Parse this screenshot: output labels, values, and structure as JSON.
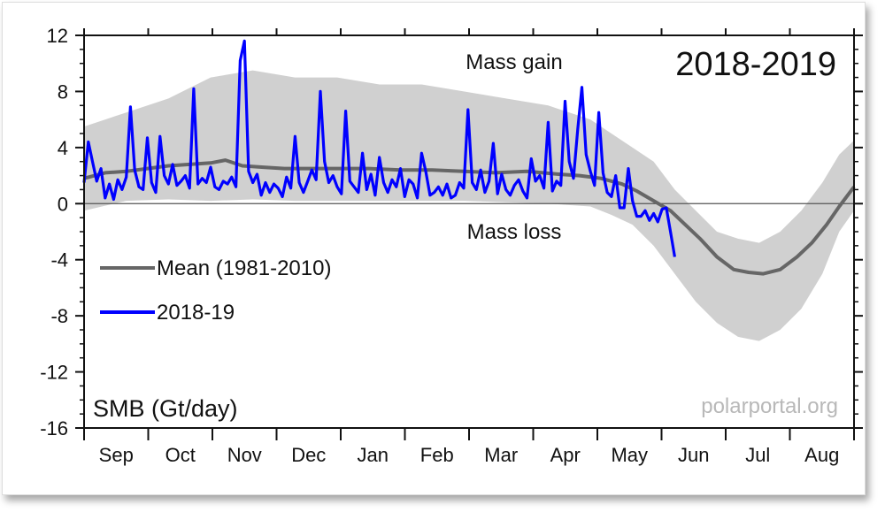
{
  "chart_data": {
    "type": "line",
    "title": "2018-2019",
    "ylabel": "SMB (Gt/day)",
    "source": "polarportal.org",
    "ylim": [
      -16,
      12
    ],
    "yticks": [
      12,
      8,
      4,
      0,
      -4,
      -8,
      -12,
      -16
    ],
    "ytick_labels": [
      "12",
      "8",
      "4",
      "0",
      "-4",
      "-8",
      "-12",
      "-16"
    ],
    "x_months": [
      "Sep",
      "Oct",
      "Nov",
      "Dec",
      "Jan",
      "Feb",
      "Mar",
      "Apr",
      "May",
      "Jun",
      "Jul",
      "Aug"
    ],
    "x_unit": "days since 1 Sep (0-365)",
    "annotations": {
      "gain": "Mass gain",
      "loss": "Mass loss"
    },
    "legend": {
      "placement": "left-middle",
      "entries": [
        "Mean (1981-2010)",
        "2018-19"
      ]
    },
    "colors": {
      "mean": "#666666",
      "current": "#0000ff",
      "band": "#d0d0d0",
      "zero_line": "#555555"
    },
    "series": [
      {
        "name": "Mean (1981-2010)",
        "x": [
          0,
          10,
          20,
          30,
          40,
          50,
          60,
          67,
          75,
          85,
          95,
          105,
          120,
          135,
          150,
          165,
          180,
          195,
          210,
          225,
          235,
          245,
          255,
          262,
          270,
          278,
          285,
          292,
          300,
          308,
          315,
          322,
          330,
          338,
          345,
          352,
          358,
          365
        ],
        "values": [
          1.8,
          2.2,
          2.3,
          2.5,
          2.7,
          2.8,
          2.9,
          3.1,
          2.7,
          2.6,
          2.5,
          2.5,
          2.5,
          2.5,
          2.4,
          2.4,
          2.3,
          2.2,
          2.3,
          2.1,
          2.0,
          1.8,
          1.4,
          0.9,
          0.2,
          -0.5,
          -1.5,
          -2.5,
          -3.8,
          -4.7,
          -4.9,
          -5.0,
          -4.7,
          -3.8,
          -2.8,
          -1.5,
          -0.2,
          1.2
        ]
      },
      {
        "name": "2018-19",
        "x": [
          0,
          2,
          4,
          6,
          8,
          10,
          12,
          14,
          16,
          18,
          20,
          22,
          24,
          26,
          28,
          30,
          32,
          34,
          36,
          38,
          40,
          42,
          44,
          46,
          48,
          50,
          52,
          54,
          56,
          58,
          60,
          62,
          64,
          66,
          68,
          70,
          72,
          74,
          76,
          78,
          80,
          82,
          84,
          86,
          88,
          90,
          92,
          94,
          96,
          98,
          100,
          102,
          104,
          106,
          108,
          110,
          112,
          114,
          116,
          118,
          120,
          122,
          124,
          126,
          128,
          130,
          132,
          134,
          136,
          138,
          140,
          142,
          144,
          146,
          148,
          150,
          152,
          154,
          156,
          158,
          160,
          162,
          164,
          166,
          168,
          170,
          172,
          174,
          176,
          178,
          180,
          182,
          184,
          186,
          188,
          190,
          192,
          194,
          196,
          198,
          200,
          202,
          204,
          206,
          208,
          210,
          212,
          214,
          216,
          218,
          220,
          222,
          224,
          226,
          228,
          230,
          232,
          234,
          236,
          238,
          240,
          242,
          244,
          246,
          248,
          250,
          252,
          254,
          256,
          258,
          260,
          262,
          264,
          266,
          268,
          270,
          272,
          274,
          276,
          278,
          280
        ],
        "values": [
          1.5,
          4.4,
          3.0,
          1.6,
          2.5,
          0.4,
          1.4,
          0.3,
          1.7,
          1.0,
          1.9,
          6.9,
          2.4,
          1.2,
          1.0,
          4.7,
          1.5,
          0.8,
          4.8,
          2.0,
          1.4,
          2.8,
          1.3,
          1.6,
          2.0,
          1.1,
          8.2,
          1.4,
          1.8,
          1.5,
          2.6,
          1.2,
          1.0,
          1.6,
          1.4,
          1.9,
          1.2,
          10.2,
          11.6,
          2.3,
          1.5,
          2.1,
          0.6,
          1.5,
          0.8,
          1.4,
          1.1,
          0.5,
          1.9,
          1.1,
          4.8,
          1.5,
          0.8,
          1.6,
          2.4,
          1.7,
          8.0,
          3.0,
          1.5,
          2.0,
          1.2,
          0.7,
          6.6,
          1.6,
          1.2,
          0.8,
          3.6,
          1.0,
          2.1,
          0.6,
          3.3,
          1.5,
          0.8,
          1.7,
          1.2,
          2.5,
          0.5,
          1.7,
          1.4,
          0.4,
          3.6,
          2.3,
          0.6,
          0.8,
          1.2,
          0.6,
          1.4,
          0.4,
          0.6,
          1.5,
          1.1,
          6.7,
          1.5,
          1.0,
          2.4,
          0.8,
          1.6,
          4.3,
          0.7,
          2.1,
          1.0,
          0.6,
          1.3,
          1.7,
          0.9,
          0.4,
          3.2,
          1.6,
          2.0,
          1.1,
          5.8,
          0.9,
          1.6,
          1.3,
          7.3,
          3.0,
          1.8,
          5.3,
          8.3,
          3.5,
          2.3,
          1.3,
          6.5,
          2.2,
          0.8,
          0.5,
          2.0,
          -0.3,
          -0.3,
          2.5,
          0.2,
          -0.9,
          -0.9,
          -0.5,
          -1.2,
          -0.7,
          -1.3,
          -0.4,
          -0.3,
          -2.0,
          -3.8
        ]
      }
    ],
    "band_x": [
      0,
      20,
      40,
      60,
      80,
      100,
      120,
      140,
      160,
      180,
      200,
      220,
      240,
      250,
      260,
      270,
      280,
      290,
      300,
      310,
      320,
      330,
      340,
      350,
      358,
      365
    ],
    "band_upper": [
      5.5,
      6.5,
      7.5,
      9.0,
      9.5,
      9.0,
      9.0,
      8.5,
      8.5,
      8.0,
      7.5,
      7.0,
      6.0,
      5.0,
      4.0,
      3.0,
      1.0,
      -0.5,
      -2.0,
      -2.5,
      -2.8,
      -2.0,
      -0.5,
      1.5,
      3.5,
      4.5
    ],
    "band_lower": [
      -0.5,
      0.2,
      0.3,
      0.2,
      0.3,
      0.2,
      0.2,
      0.2,
      0.2,
      0.2,
      0.1,
      0.0,
      -0.2,
      -0.8,
      -1.5,
      -3.0,
      -5.0,
      -7.0,
      -8.5,
      -9.5,
      -9.8,
      -9.0,
      -7.5,
      -5.0,
      -2.0,
      -0.5
    ]
  }
}
